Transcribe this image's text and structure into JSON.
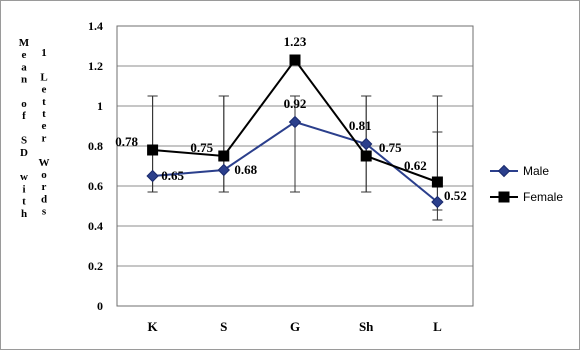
{
  "chart_data": {
    "type": "line",
    "title": "",
    "xlabel": "",
    "ylabel": "Mean of SD with 1 Letter Words",
    "ylabel_columns": [
      "Mean of SD with",
      "1 Letter Words"
    ],
    "categories": [
      "K",
      "S",
      "G",
      "Sh",
      "L"
    ],
    "ylim": [
      0,
      1.4
    ],
    "yticks": [
      "0",
      "0.2",
      "0.4",
      "0.6",
      "0.8",
      "1",
      "1.2",
      "1.4"
    ],
    "grid": true,
    "legend": "right",
    "series": [
      {
        "name": "Male",
        "values": [
          0.65,
          0.68,
          0.92,
          0.81,
          0.52
        ],
        "labels": [
          "0.65",
          "0.68",
          "0.92",
          "0.81",
          "0.52"
        ],
        "color": "#2b3f8c",
        "marker": "diamond",
        "error_low": [
          0.57,
          0.57,
          0.57,
          0.57,
          0.43
        ],
        "error_high": [
          1.05,
          1.05,
          1.05,
          1.05,
          1.05
        ]
      },
      {
        "name": "Female",
        "values": [
          0.78,
          0.75,
          1.23,
          0.75,
          0.62
        ],
        "labels": [
          "0.78",
          "0.75",
          "1.23",
          "0.75",
          "0.62"
        ],
        "color": "#000000",
        "marker": "square",
        "error_low": [
          0.57,
          0.57,
          0.57,
          0.57,
          0.48
        ],
        "error_high": [
          1.05,
          1.05,
          1.05,
          1.05,
          0.87
        ]
      }
    ]
  }
}
